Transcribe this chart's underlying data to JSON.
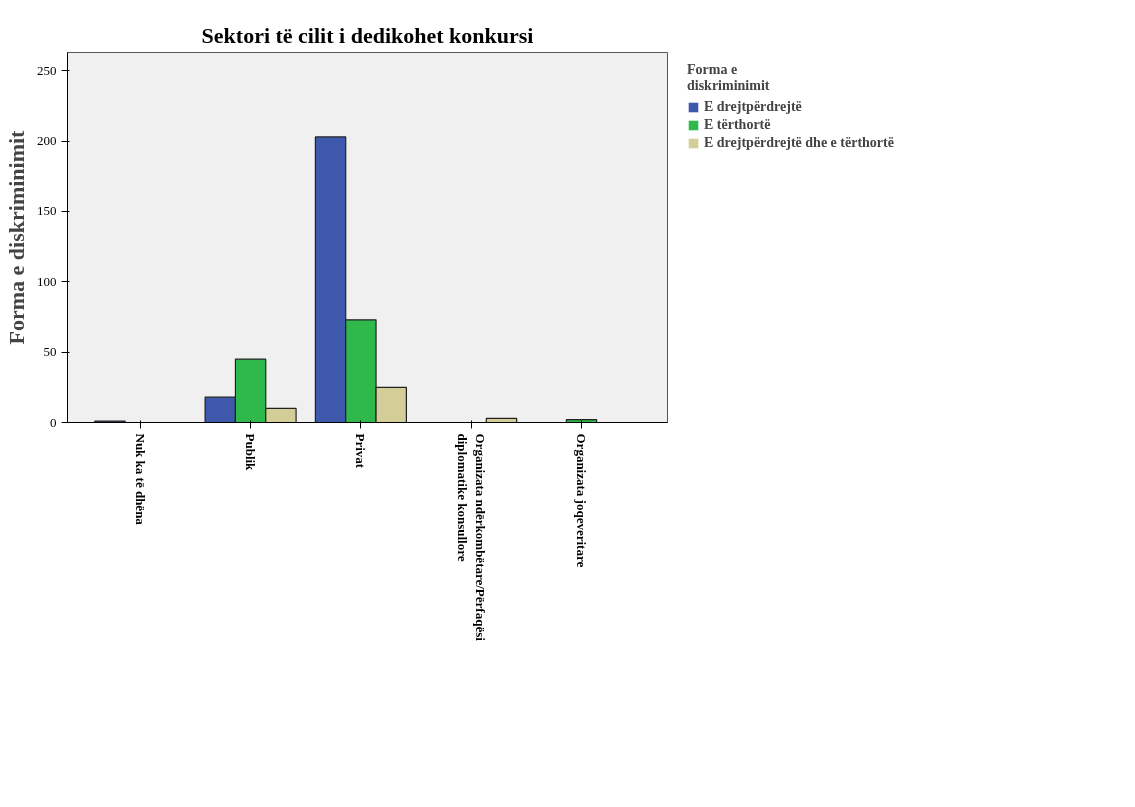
{
  "chart_data": {
    "type": "bar",
    "title": "Sektori të cilit i dedikohet konkursi",
    "ylabel": "Forma e diskriminimit",
    "legend_title": "Forma e diskriminimit",
    "categories": [
      "Nuk ka të dhëna",
      "Publik",
      "Privat",
      "Organizata ndërkombëtare/Përfaqësi diplomatike konsullore",
      "Organizata joqeveritare"
    ],
    "series": [
      {
        "name": "E drejtpërdrejtë",
        "color": "#3e58ac",
        "values": [
          1,
          18,
          203,
          null,
          null
        ]
      },
      {
        "name": "E tërthortë",
        "color": "#2eb94a",
        "values": [
          null,
          45,
          73,
          null,
          2
        ]
      },
      {
        "name": "E drejtpërdrejtë dhe e tërthortë",
        "color": "#d3ce97",
        "values": [
          null,
          10,
          25,
          3,
          null
        ]
      }
    ],
    "ylim": [
      0,
      263
    ],
    "yticks": [
      0,
      50,
      100,
      150,
      200,
      250
    ],
    "grid": false,
    "legend": "right"
  }
}
